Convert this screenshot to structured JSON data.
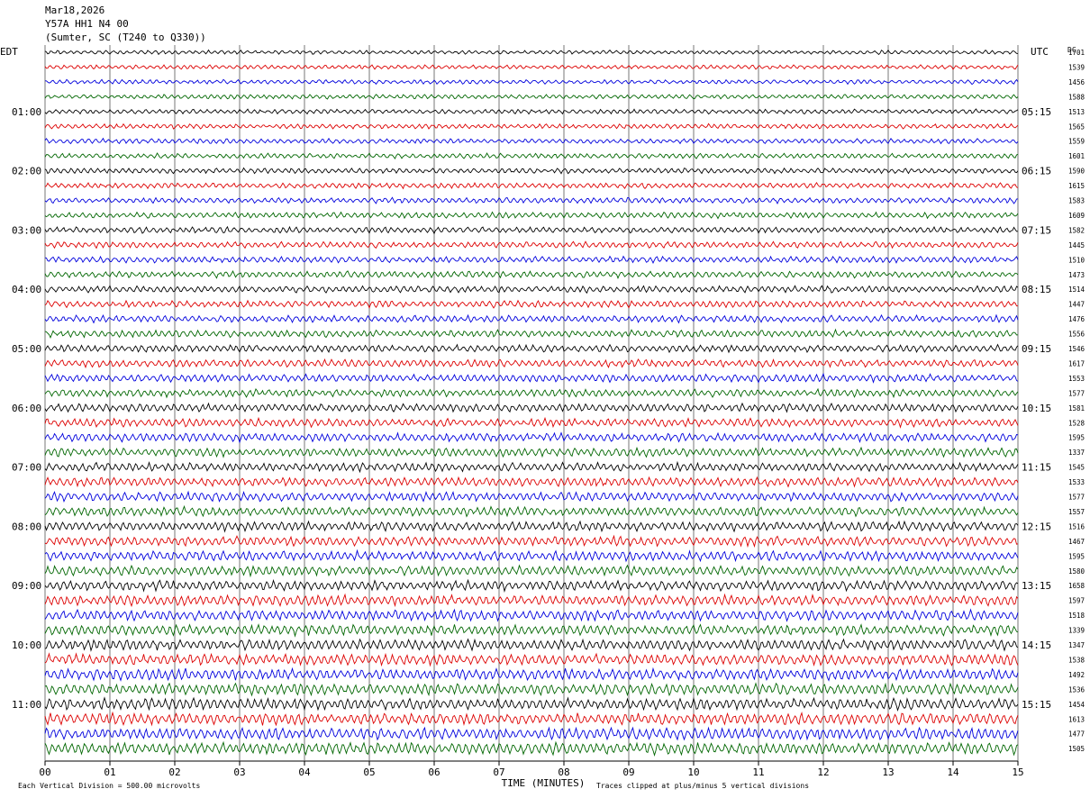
{
  "header": {
    "date": "Mar18,2026",
    "station": "Y57A HH1 N4 00",
    "location": "(Sumter, SC (T240 to Q330))"
  },
  "left_axis_label": "EDT",
  "right_axis_label": "UTC",
  "dc_label": "DC",
  "footer": {
    "scale_note": "Each Vertical Division =  500.00 microvolts",
    "clip_note": "Traces clipped at plus/minus 5 vertical divisions"
  },
  "chart_data": {
    "type": "line",
    "title": "Mar18,2026 Y57A HH1 N4 00 (Sumter, SC (T240 to Q330))",
    "xlabel": "TIME (MINUTES)",
    "x_ticks": [
      "00",
      "01",
      "02",
      "03",
      "04",
      "05",
      "06",
      "07",
      "08",
      "09",
      "10",
      "11",
      "12",
      "13",
      "14",
      "15"
    ],
    "xlim": [
      0,
      15
    ],
    "grid": "vertical lines each minute",
    "trace_count": 48,
    "trace_colors": [
      "#000000",
      "#dd0000",
      "#0000dd",
      "#006600"
    ],
    "edt_hour_labels": [
      "01:00",
      "02:00",
      "03:00",
      "04:00",
      "05:00",
      "06:00",
      "07:00",
      "08:00",
      "09:00",
      "10:00",
      "11:00"
    ],
    "utc_hour_labels": [
      "05:15",
      "06:15",
      "07:15",
      "08:15",
      "09:15",
      "10:15",
      "11:15",
      "12:15",
      "13:15",
      "14:15",
      "15:15"
    ],
    "dc_offsets": [
      "1701",
      "1539",
      "1456",
      "1588",
      "1513",
      "1565",
      "1559",
      "1601",
      "1590",
      "1615",
      "1583",
      "1609",
      "1582",
      "1445",
      "1510",
      "1473",
      "1514",
      "1447",
      "1476",
      "1556",
      "1546",
      "1617",
      "1553",
      "1577",
      "1581",
      "1528",
      "1595",
      "1337",
      "1545",
      "1533",
      "1577",
      "1557",
      "1516",
      "1467",
      "1595",
      "1580",
      "1658",
      "1597",
      "1518",
      "1339",
      "1347",
      "1538",
      "1492",
      "1536",
      "1454",
      "1613",
      "1477",
      "1505"
    ]
  }
}
